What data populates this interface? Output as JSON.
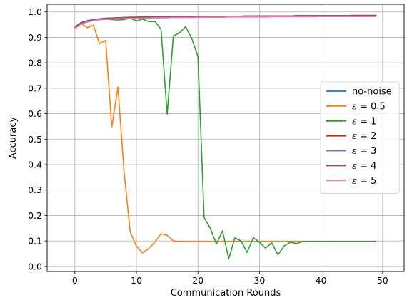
{
  "chart_data": {
    "type": "line",
    "xlabel": "Communication Rounds",
    "ylabel": "Accuracy",
    "xlim": [
      -4.5,
      53.5
    ],
    "ylim": [
      -0.02,
      1.03
    ],
    "xticks": [
      0,
      10,
      20,
      30,
      40,
      50
    ],
    "yticks": [
      0.0,
      0.1,
      0.2,
      0.3,
      0.4,
      0.5,
      0.6,
      0.7,
      0.8,
      0.9,
      1.0
    ],
    "grid": true,
    "legend_position": "center-right",
    "x": [
      0,
      1,
      2,
      3,
      4,
      5,
      6,
      7,
      8,
      9,
      10,
      11,
      12,
      13,
      14,
      15,
      16,
      17,
      18,
      19,
      20,
      21,
      22,
      23,
      24,
      25,
      26,
      27,
      28,
      29,
      30,
      31,
      32,
      33,
      34,
      35,
      36,
      37,
      38,
      39,
      40,
      41,
      42,
      43,
      44,
      45,
      46,
      47,
      48,
      49
    ],
    "series": [
      {
        "name": "no-noise",
        "legend_math": false,
        "color": "#1f77b4",
        "values": [
          0.94,
          0.958,
          0.965,
          0.97,
          0.973,
          0.975,
          0.976,
          0.977,
          0.978,
          0.979,
          0.979,
          0.98,
          0.98,
          0.981,
          0.981,
          0.981,
          0.981,
          0.982,
          0.982,
          0.982,
          0.982,
          0.983,
          0.983,
          0.983,
          0.983,
          0.983,
          0.983,
          0.983,
          0.984,
          0.984,
          0.984,
          0.984,
          0.984,
          0.984,
          0.984,
          0.984,
          0.985,
          0.985,
          0.985,
          0.985,
          0.985,
          0.985,
          0.985,
          0.985,
          0.985,
          0.986,
          0.986,
          0.986,
          0.986,
          0.986
        ]
      },
      {
        "name": "0.5",
        "legend_math": true,
        "color": "#ff7f0e",
        "values": [
          0.935,
          0.955,
          0.938,
          0.948,
          0.875,
          0.888,
          0.548,
          0.705,
          0.37,
          0.135,
          0.08,
          0.053,
          0.07,
          0.095,
          0.128,
          0.122,
          0.1,
          0.098,
          0.098,
          0.098,
          0.098,
          0.098,
          0.098,
          0.098,
          0.098,
          0.098,
          0.098,
          0.098,
          0.098,
          0.098,
          0.098,
          0.098,
          0.098,
          0.098,
          0.098,
          0.098,
          0.098,
          0.098,
          0.098,
          0.098,
          0.098,
          0.098,
          0.098,
          0.098,
          0.098,
          0.098,
          0.098,
          0.098,
          0.098,
          0.098
        ]
      },
      {
        "name": "1",
        "legend_math": true,
        "color": "#2ca02c",
        "values": [
          0.938,
          0.955,
          0.965,
          0.968,
          0.97,
          0.972,
          0.97,
          0.968,
          0.97,
          0.975,
          0.965,
          0.972,
          0.962,
          0.963,
          0.932,
          0.598,
          0.905,
          0.918,
          0.942,
          0.895,
          0.825,
          0.192,
          0.15,
          0.088,
          0.14,
          0.03,
          0.112,
          0.1,
          0.055,
          0.113,
          0.095,
          0.072,
          0.093,
          0.045,
          0.08,
          0.095,
          0.09,
          0.098,
          0.098,
          0.098,
          0.098,
          0.098,
          0.098,
          0.098,
          0.098,
          0.098,
          0.098,
          0.098,
          0.098,
          0.098
        ]
      },
      {
        "name": "2",
        "legend_math": true,
        "color": "#d62728",
        "values": [
          0.94,
          0.957,
          0.964,
          0.969,
          0.972,
          0.974,
          0.975,
          0.976,
          0.977,
          0.978,
          0.978,
          0.979,
          0.979,
          0.98,
          0.98,
          0.98,
          0.98,
          0.981,
          0.981,
          0.981,
          0.981,
          0.982,
          0.982,
          0.982,
          0.982,
          0.982,
          0.982,
          0.982,
          0.983,
          0.983,
          0.983,
          0.983,
          0.983,
          0.983,
          0.983,
          0.983,
          0.984,
          0.984,
          0.984,
          0.984,
          0.984,
          0.984,
          0.984,
          0.984,
          0.984,
          0.985,
          0.985,
          0.985,
          0.985,
          0.985
        ]
      },
      {
        "name": "3",
        "legend_math": true,
        "color": "#9467bd",
        "values": [
          0.939,
          0.957,
          0.965,
          0.97,
          0.973,
          0.975,
          0.976,
          0.977,
          0.978,
          0.979,
          0.979,
          0.98,
          0.98,
          0.981,
          0.981,
          0.981,
          0.981,
          0.982,
          0.982,
          0.982,
          0.982,
          0.983,
          0.983,
          0.983,
          0.983,
          0.983,
          0.983,
          0.983,
          0.984,
          0.984,
          0.984,
          0.984,
          0.984,
          0.984,
          0.984,
          0.984,
          0.985,
          0.985,
          0.985,
          0.985,
          0.985,
          0.985,
          0.985,
          0.985,
          0.985,
          0.986,
          0.986,
          0.986,
          0.986,
          0.986
        ]
      },
      {
        "name": "4",
        "legend_math": true,
        "color": "#8c564b",
        "values": [
          0.94,
          0.958,
          0.965,
          0.97,
          0.973,
          0.975,
          0.976,
          0.977,
          0.978,
          0.979,
          0.979,
          0.98,
          0.98,
          0.981,
          0.981,
          0.981,
          0.981,
          0.982,
          0.982,
          0.982,
          0.982,
          0.983,
          0.983,
          0.983,
          0.983,
          0.983,
          0.983,
          0.983,
          0.984,
          0.984,
          0.984,
          0.984,
          0.984,
          0.984,
          0.984,
          0.984,
          0.985,
          0.985,
          0.985,
          0.985,
          0.985,
          0.985,
          0.985,
          0.985,
          0.985,
          0.986,
          0.986,
          0.986,
          0.986,
          0.986
        ]
      },
      {
        "name": "5",
        "legend_math": true,
        "color": "#e377c2",
        "values": [
          0.934,
          0.952,
          0.96,
          0.966,
          0.969,
          0.971,
          0.972,
          0.973,
          0.974,
          0.975,
          0.975,
          0.976,
          0.976,
          0.977,
          0.977,
          0.977,
          0.978,
          0.978,
          0.978,
          0.978,
          0.979,
          0.979,
          0.979,
          0.979,
          0.979,
          0.98,
          0.98,
          0.98,
          0.98,
          0.98,
          0.98,
          0.98,
          0.981,
          0.981,
          0.981,
          0.981,
          0.981,
          0.981,
          0.981,
          0.981,
          0.982,
          0.982,
          0.982,
          0.982,
          0.982,
          0.982,
          0.982,
          0.982,
          0.982,
          0.982
        ]
      }
    ]
  }
}
